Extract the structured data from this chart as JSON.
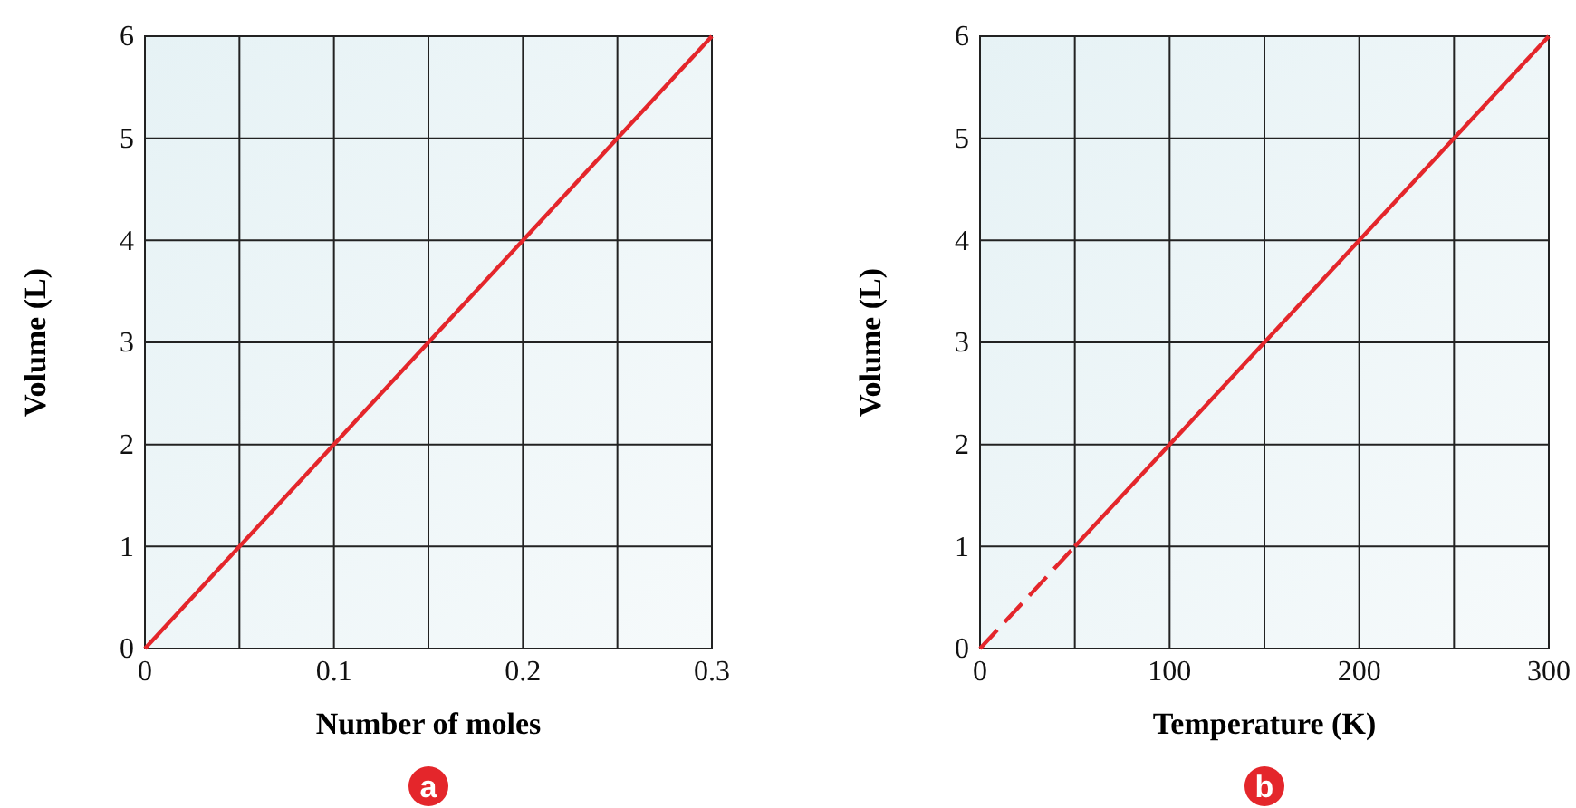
{
  "chart_data": [
    {
      "type": "line",
      "xlabel": "Number of moles",
      "ylabel": "Volume (L)",
      "annotations": [
        "a"
      ],
      "x": [
        0,
        0.3
      ],
      "series": [
        {
          "color": "#e4262b",
          "values": [
            0,
            6
          ],
          "line_style": "solid"
        }
      ],
      "xlim": [
        0,
        0.3
      ],
      "ylim": [
        0,
        6
      ],
      "xticks": [
        0,
        {
          "value": 0.05,
          "label": null
        },
        0.1,
        {
          "value": 0.15,
          "label": null
        },
        0.2,
        {
          "value": 0.25,
          "label": null
        },
        0.3
      ],
      "yticks": [
        0,
        1,
        2,
        3,
        4,
        5,
        6
      ],
      "grid": true,
      "marker": "none"
    },
    {
      "type": "line",
      "xlabel": "Temperature (K)",
      "ylabel": "Volume (L)",
      "annotations": [
        "b"
      ],
      "series": [
        {
          "color": "#e4262b",
          "x": [
            0,
            50
          ],
          "values": [
            0,
            1
          ],
          "line_style": "dashed"
        },
        {
          "color": "#e4262b",
          "x": [
            50,
            300
          ],
          "values": [
            1,
            6
          ],
          "line_style": "solid"
        }
      ],
      "xlim": [
        0,
        300
      ],
      "ylim": [
        0,
        6
      ],
      "xticks": [
        0,
        {
          "value": 50,
          "label": null
        },
        100,
        {
          "value": 150,
          "label": null
        },
        200,
        {
          "value": 250,
          "label": null
        },
        300
      ],
      "yticks": [
        0,
        1,
        2,
        3,
        4,
        5,
        6
      ],
      "grid": true,
      "marker": "none"
    }
  ]
}
